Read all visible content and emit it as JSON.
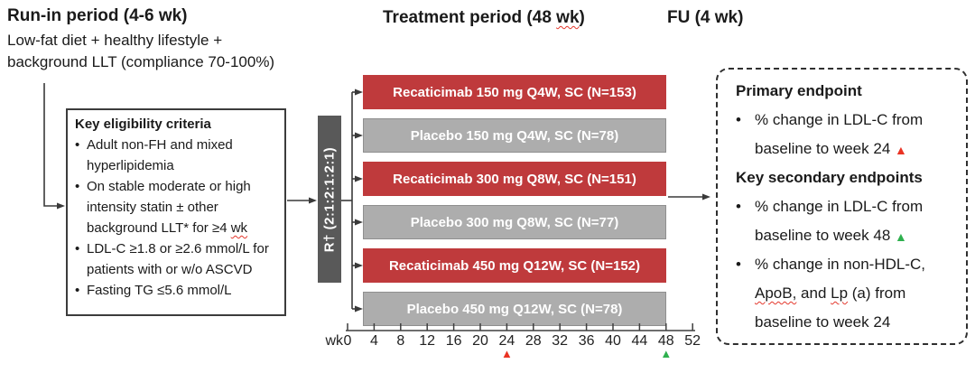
{
  "headers": {
    "run_in_title": "Run-in period (4-6 wk)",
    "run_in_desc": [
      "Low-fat diet + healthy lifestyle +",
      "background LLT (compliance 70-100%)"
    ],
    "treatment_title": "Treatment period (48 ~wk~)",
    "fu_title": "FU (4 wk)"
  },
  "eligibility": {
    "title": "Key eligibility criteria",
    "items": [
      [
        "Adult non-FH and mixed",
        "hyperlipidemia"
      ],
      [
        "On stable moderate or high",
        "intensity statin ± other",
        "background LLT* for ≥4 ~wk~"
      ],
      [
        "LDL-C ≥1.8 or ≥2.6 mmol/L for",
        "patients with or w/o ASCVD"
      ],
      [
        "Fasting TG ≤5.6 mmol/L"
      ]
    ]
  },
  "randomization": {
    "label": "R† (2:1:2:1:2:1)"
  },
  "arms": [
    {
      "type": "drug",
      "label": "Recaticimab 150 mg Q4W, SC (N=153)"
    },
    {
      "type": "placebo",
      "label": "Placebo 150 mg Q4W, SC (N=78)"
    },
    {
      "type": "drug",
      "label": "Recaticimab 300 mg Q8W, SC (N=151)"
    },
    {
      "type": "placebo",
      "label": "Placebo 300 mg Q8W, SC (N=77)"
    },
    {
      "type": "drug",
      "label": "Recaticimab 450 mg Q12W, SC (N=152)"
    },
    {
      "type": "placebo",
      "label": "Placebo 450 mg Q12W, SC (N=78)"
    }
  ],
  "timeline": {
    "unit": "wk",
    "labels": [
      "0",
      "4",
      "8",
      "12",
      "16",
      "20",
      "24",
      "28",
      "32",
      "36",
      "40",
      "44",
      "48",
      "52"
    ],
    "markers": [
      {
        "at": "24",
        "type": "red-triangle"
      },
      {
        "at": "48",
        "type": "green-triangle"
      }
    ]
  },
  "endpoints": {
    "sections": [
      {
        "title": "Primary endpoint",
        "bullets": [
          [
            "% change in LDL-C from",
            "baseline to week 24 {r}"
          ]
        ]
      },
      {
        "title": "Key secondary endpoints",
        "bullets": [
          [
            "% change in LDL-C from",
            "baseline to week 48 {g}"
          ],
          [
            "% change in non-HDL-C,",
            "~ApoB,~ and ~Lp~ (a) from",
            "baseline to week 24"
          ]
        ]
      }
    ]
  },
  "colors": {
    "drug_bar": "#bf3a3c",
    "placebo_bar": "#adadad",
    "placebo_border": "#8f8f8f",
    "randomization_bar": "#595959",
    "bar_text": "#ffffff",
    "line": "#3a3a3a",
    "squiggle": "#e4372c",
    "marker_red": "#ea3323",
    "marker_green": "#2eb04e"
  }
}
